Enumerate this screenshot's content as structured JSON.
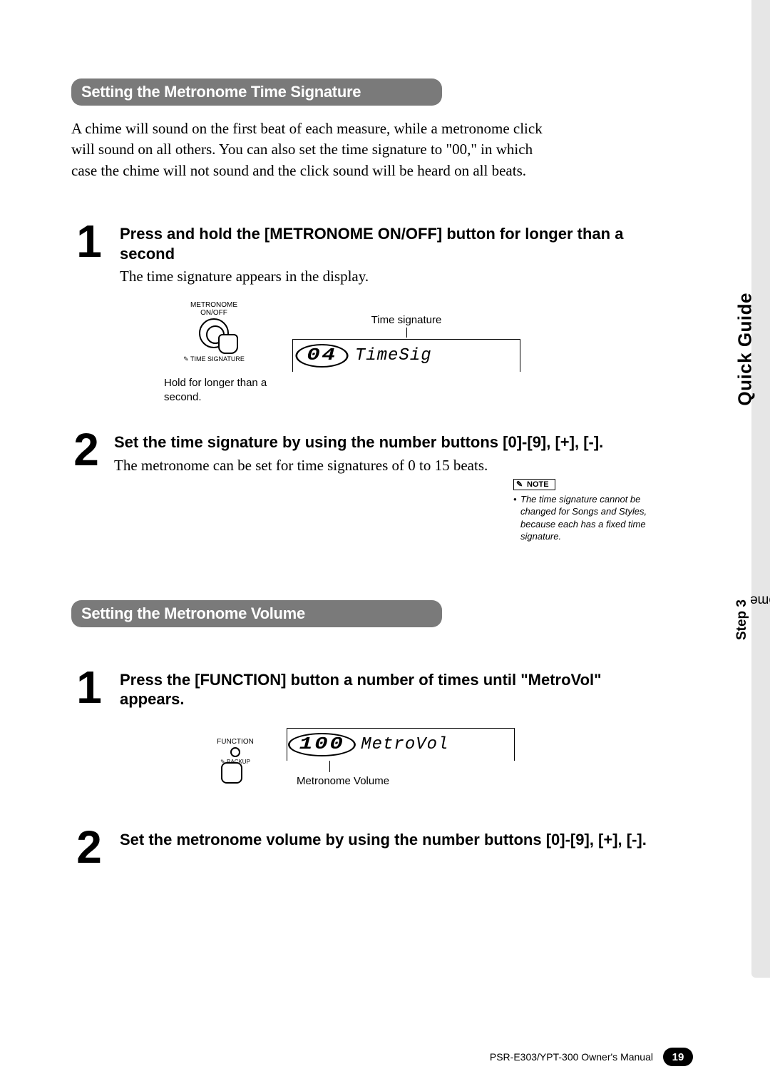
{
  "sidebar": {
    "quick_guide": "Quick Guide",
    "step_label_bold": "Step 3",
    "step_label_rest": " Play With The Metronome"
  },
  "section1": {
    "heading": "Setting the Metronome Time Signature",
    "intro": "A chime will sound on the first beat of each measure, while a metronome click will sound on all others. You can also set the time signature to \"00,\" in which case the chime will not sound and the click sound will be heard on all beats.",
    "step1": {
      "num": "1",
      "title": "Press and hold the [METRONOME ON/OFF] button for longer than a second",
      "desc": "The time signature appears in the display.",
      "button_label_top": "METRONOME\nON/OFF",
      "button_label_bottom": "TIME SIGNATURE",
      "hold_text": "Hold for longer than a second.",
      "lcd_caption": "Time signature",
      "lcd_value": "04",
      "lcd_name": "TimeSig"
    },
    "step2": {
      "num": "2",
      "title": "Set the time signature by using the number buttons [0]-[9], [+], [-].",
      "desc": "The metronome can be set for time signatures of 0 to 15 beats.",
      "note_label": "NOTE",
      "note_text": "The time signature cannot be changed for Songs and Styles, because each has a fixed time signature."
    }
  },
  "section2": {
    "heading": "Setting the Metronome Volume",
    "step1": {
      "num": "1",
      "title": "Press the [FUNCTION] button a number of times until \"MetroVol\" appears.",
      "func_label": "FUNCTION",
      "backup_label": "BACKUP",
      "lcd_value": "100",
      "lcd_name": "MetroVol",
      "lcd_caption_below": "Metronome Volume"
    },
    "step2": {
      "num": "2",
      "title": "Set the metronome volume by using the number buttons [0]-[9], [+], [-]."
    }
  },
  "footer": {
    "manual": "PSR-E303/YPT-300   Owner's Manual",
    "page": "19"
  }
}
